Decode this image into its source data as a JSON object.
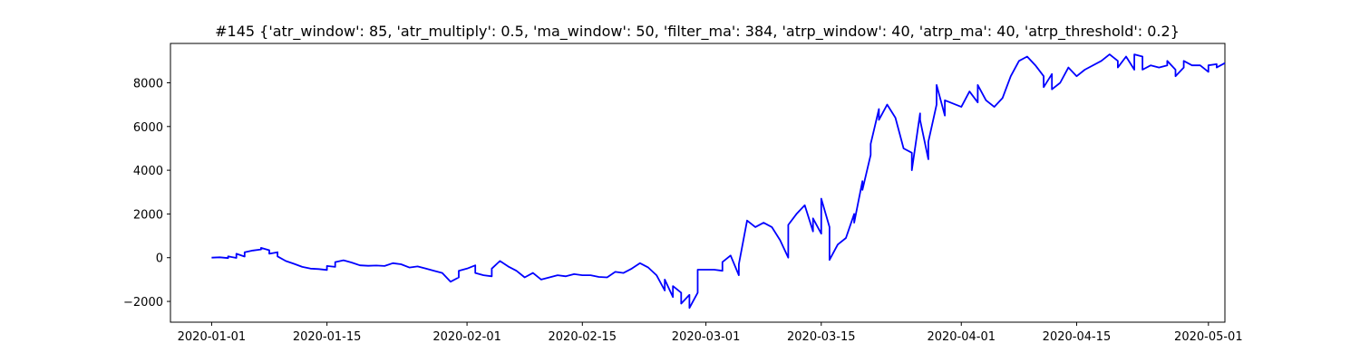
{
  "chart_data": {
    "type": "line",
    "title": "#145 {'atr_window': 85, 'atr_multiply': 0.5, 'ma_window': 50, 'filter_ma': 384, 'atrp_window': 40, 'atrp_ma': 40, 'atrp_threshold': 0.2}",
    "xlabel": "",
    "ylabel": "",
    "x_type": "date",
    "xlim": [
      "2019-12-27",
      "2020-05-03"
    ],
    "ylim": [
      -2950,
      9800
    ],
    "grid": false,
    "legend": "none",
    "x_ticks": [
      "2020-01-01",
      "2020-01-15",
      "2020-02-01",
      "2020-02-15",
      "2020-03-01",
      "2020-03-15",
      "2020-04-01",
      "2020-04-15",
      "2020-05-01"
    ],
    "y_ticks": [
      -2000,
      0,
      2000,
      4000,
      6000,
      8000
    ],
    "series": [
      {
        "color": "#0000ff",
        "points": [
          [
            "2020-01-01",
            0
          ],
          [
            "2020-01-02",
            20
          ],
          [
            "2020-01-03",
            -20
          ],
          [
            "2020-01-03",
            60
          ],
          [
            "2020-01-04",
            -10
          ],
          [
            "2020-01-04",
            180
          ],
          [
            "2020-01-05",
            50
          ],
          [
            "2020-01-05",
            250
          ],
          [
            "2020-01-06",
            330
          ],
          [
            "2020-01-07",
            380
          ],
          [
            "2020-01-07",
            450
          ],
          [
            "2020-01-08",
            340
          ],
          [
            "2020-01-08",
            180
          ],
          [
            "2020-01-09",
            250
          ],
          [
            "2020-01-09",
            60
          ],
          [
            "2020-01-10",
            -150
          ],
          [
            "2020-01-11",
            -280
          ],
          [
            "2020-01-12",
            -420
          ],
          [
            "2020-01-13",
            -500
          ],
          [
            "2020-01-14",
            -520
          ],
          [
            "2020-01-15",
            -560
          ],
          [
            "2020-01-15",
            -380
          ],
          [
            "2020-01-16",
            -420
          ],
          [
            "2020-01-16",
            -200
          ],
          [
            "2020-01-17",
            -120
          ],
          [
            "2020-01-18",
            -220
          ],
          [
            "2020-01-19",
            -350
          ],
          [
            "2020-01-20",
            -370
          ],
          [
            "2020-01-21",
            -360
          ],
          [
            "2020-01-22",
            -380
          ],
          [
            "2020-01-23",
            -250
          ],
          [
            "2020-01-24",
            -300
          ],
          [
            "2020-01-25",
            -450
          ],
          [
            "2020-01-26",
            -400
          ],
          [
            "2020-01-27",
            -500
          ],
          [
            "2020-01-28",
            -600
          ],
          [
            "2020-01-29",
            -700
          ],
          [
            "2020-01-30",
            -1100
          ],
          [
            "2020-01-31",
            -900
          ],
          [
            "2020-01-31",
            -600
          ],
          [
            "2020-02-01",
            -500
          ],
          [
            "2020-02-02",
            -350
          ],
          [
            "2020-02-02",
            -700
          ],
          [
            "2020-02-03",
            -800
          ],
          [
            "2020-02-04",
            -850
          ],
          [
            "2020-02-04",
            -500
          ],
          [
            "2020-02-05",
            -150
          ],
          [
            "2020-02-06",
            -400
          ],
          [
            "2020-02-07",
            -600
          ],
          [
            "2020-02-08",
            -900
          ],
          [
            "2020-02-09",
            -700
          ],
          [
            "2020-02-10",
            -1000
          ],
          [
            "2020-02-11",
            -900
          ],
          [
            "2020-02-12",
            -800
          ],
          [
            "2020-02-13",
            -850
          ],
          [
            "2020-02-14",
            -750
          ],
          [
            "2020-02-15",
            -800
          ],
          [
            "2020-02-16",
            -800
          ],
          [
            "2020-02-17",
            -880
          ],
          [
            "2020-02-18",
            -900
          ],
          [
            "2020-02-19",
            -650
          ],
          [
            "2020-02-20",
            -700
          ],
          [
            "2020-02-21",
            -500
          ],
          [
            "2020-02-22",
            -250
          ],
          [
            "2020-02-23",
            -450
          ],
          [
            "2020-02-24",
            -800
          ],
          [
            "2020-02-25",
            -1500
          ],
          [
            "2020-02-25",
            -1000
          ],
          [
            "2020-02-26",
            -1800
          ],
          [
            "2020-02-26",
            -1300
          ],
          [
            "2020-02-27",
            -1600
          ],
          [
            "2020-02-27",
            -2100
          ],
          [
            "2020-02-28",
            -1700
          ],
          [
            "2020-02-28",
            -2300
          ],
          [
            "2020-02-29",
            -1600
          ],
          [
            "2020-02-29",
            -550
          ],
          [
            "2020-03-01",
            -550
          ],
          [
            "2020-03-02",
            -550
          ],
          [
            "2020-03-03",
            -600
          ],
          [
            "2020-03-03",
            -200
          ],
          [
            "2020-03-04",
            100
          ],
          [
            "2020-03-05",
            -800
          ],
          [
            "2020-03-05",
            -300
          ],
          [
            "2020-03-06",
            1700
          ],
          [
            "2020-03-07",
            1400
          ],
          [
            "2020-03-08",
            1600
          ],
          [
            "2020-03-09",
            1400
          ],
          [
            "2020-03-10",
            800
          ],
          [
            "2020-03-11",
            0
          ],
          [
            "2020-03-11",
            1500
          ],
          [
            "2020-03-12",
            2000
          ],
          [
            "2020-03-13",
            2400
          ],
          [
            "2020-03-14",
            1200
          ],
          [
            "2020-03-14",
            1800
          ],
          [
            "2020-03-15",
            1100
          ],
          [
            "2020-03-15",
            2700
          ],
          [
            "2020-03-16",
            1400
          ],
          [
            "2020-03-16",
            -100
          ],
          [
            "2020-03-17",
            600
          ],
          [
            "2020-03-18",
            900
          ],
          [
            "2020-03-19",
            2000
          ],
          [
            "2020-03-19",
            1600
          ],
          [
            "2020-03-20",
            3500
          ],
          [
            "2020-03-20",
            3100
          ],
          [
            "2020-03-21",
            4700
          ],
          [
            "2020-03-21",
            5200
          ],
          [
            "2020-03-22",
            6800
          ],
          [
            "2020-03-22",
            6300
          ],
          [
            "2020-03-23",
            7000
          ],
          [
            "2020-03-24",
            6400
          ],
          [
            "2020-03-25",
            5000
          ],
          [
            "2020-03-26",
            4800
          ],
          [
            "2020-03-26",
            4000
          ],
          [
            "2020-03-27",
            6600
          ],
          [
            "2020-03-27",
            6300
          ],
          [
            "2020-03-28",
            4500
          ],
          [
            "2020-03-28",
            5300
          ],
          [
            "2020-03-29",
            7000
          ],
          [
            "2020-03-29",
            7900
          ],
          [
            "2020-03-30",
            6500
          ],
          [
            "2020-03-30",
            7200
          ],
          [
            "2020-04-01",
            6900
          ],
          [
            "2020-04-02",
            7600
          ],
          [
            "2020-04-03",
            7100
          ],
          [
            "2020-04-03",
            7900
          ],
          [
            "2020-04-04",
            7200
          ],
          [
            "2020-04-05",
            6900
          ],
          [
            "2020-04-06",
            7300
          ],
          [
            "2020-04-07",
            8300
          ],
          [
            "2020-04-08",
            9000
          ],
          [
            "2020-04-09",
            9200
          ],
          [
            "2020-04-10",
            8800
          ],
          [
            "2020-04-11",
            8300
          ],
          [
            "2020-04-11",
            7800
          ],
          [
            "2020-04-12",
            8400
          ],
          [
            "2020-04-12",
            7700
          ],
          [
            "2020-04-13",
            8000
          ],
          [
            "2020-04-14",
            8700
          ],
          [
            "2020-04-15",
            8300
          ],
          [
            "2020-04-16",
            8600
          ],
          [
            "2020-04-18",
            9000
          ],
          [
            "2020-04-19",
            9300
          ],
          [
            "2020-04-20",
            9000
          ],
          [
            "2020-04-20",
            8700
          ],
          [
            "2020-04-21",
            9200
          ],
          [
            "2020-04-22",
            8600
          ],
          [
            "2020-04-22",
            9300
          ],
          [
            "2020-04-23",
            9200
          ],
          [
            "2020-04-23",
            8600
          ],
          [
            "2020-04-24",
            8800
          ],
          [
            "2020-04-25",
            8700
          ],
          [
            "2020-04-26",
            8800
          ],
          [
            "2020-04-26",
            9000
          ],
          [
            "2020-04-27",
            8600
          ],
          [
            "2020-04-27",
            8300
          ],
          [
            "2020-04-28",
            8700
          ],
          [
            "2020-04-28",
            9000
          ],
          [
            "2020-04-29",
            8800
          ],
          [
            "2020-04-30",
            8800
          ],
          [
            "2020-05-01",
            8500
          ],
          [
            "2020-05-01",
            8800
          ],
          [
            "2020-05-02",
            8850
          ],
          [
            "2020-05-02",
            8700
          ],
          [
            "2020-05-03",
            8900
          ]
        ]
      }
    ]
  }
}
